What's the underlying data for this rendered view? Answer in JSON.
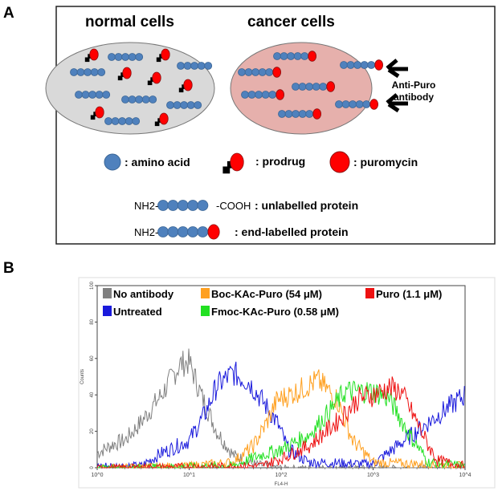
{
  "panel_a": {
    "label": "A",
    "normal_title": "normal cells",
    "cancer_title": "cancer cells",
    "antibody_label_1": "Anti-Puro",
    "antibody_label_2": "antibody",
    "legend": {
      "amino_acid": ": amino acid",
      "prodrug": ": prodrug",
      "puromycin": ": puromycin"
    },
    "unlabelled": {
      "nterm": "NH2-",
      "cterm": "-COOH",
      "label": ": unlabelled protein"
    },
    "endlabelled": {
      "nterm": "NH2-",
      "label": ": end-labelled protein"
    },
    "colors": {
      "amino_acid": "#4f81bd",
      "puromycin": "#ff0000",
      "normal_cell": "#d9d9d9",
      "cancer_cell": "#e6b0ac"
    }
  },
  "panel_b": {
    "label": "B"
  },
  "chart_data": {
    "type": "line",
    "xlabel": "FL4-H",
    "ylabel": "Counts",
    "x_scale": "log",
    "xlim": [
      1,
      10000
    ],
    "ylim": [
      0,
      100
    ],
    "x_ticks": [
      "10^0",
      "10^1",
      "10^2",
      "10^3",
      "10^4"
    ],
    "y_ticks": [
      "0",
      "20",
      "40",
      "60",
      "80",
      "100"
    ],
    "legend_position": "top",
    "series": [
      {
        "name": "No antibody",
        "color": "#808080",
        "x": [
          1,
          1.5,
          2,
          3,
          5,
          8,
          10,
          14,
          20,
          30,
          50,
          100,
          10000
        ],
        "y": [
          8,
          13,
          15,
          25,
          40,
          57,
          58,
          38,
          20,
          7,
          2,
          0,
          0
        ]
      },
      {
        "name": "Untreated",
        "color": "#1a1adc",
        "x": [
          1,
          3,
          5,
          10,
          15,
          20,
          30,
          45,
          60,
          90,
          120,
          200,
          1000,
          10000
        ],
        "y": [
          1,
          1,
          8,
          15,
          30,
          45,
          52,
          47,
          38,
          25,
          10,
          3,
          2,
          40
        ]
      },
      {
        "name": "Boc-KAc-Puro (54 μM)",
        "color": "#ffa020",
        "x": [
          1,
          10,
          30,
          50,
          70,
          90,
          150,
          250,
          400,
          600,
          1000,
          10000
        ],
        "y": [
          0,
          1,
          3,
          12,
          25,
          37,
          42,
          48,
          38,
          15,
          3,
          1
        ]
      },
      {
        "name": "Fmoc-KAc-Puro (0.58 μM)",
        "color": "#22e022",
        "x": [
          1,
          30,
          60,
          100,
          200,
          350,
          500,
          1000,
          1500,
          2500,
          4000,
          10000
        ],
        "y": [
          0,
          1,
          7,
          10,
          18,
          32,
          42,
          42,
          38,
          18,
          3,
          1
        ]
      },
      {
        "name": "Puro (1.1 μM)",
        "color": "#ee1111",
        "x": [
          1,
          60,
          100,
          200,
          400,
          700,
          1000,
          1500,
          2000,
          3000,
          4000,
          5000,
          10000
        ],
        "y": [
          0,
          1,
          5,
          12,
          25,
          38,
          40,
          44,
          42,
          25,
          12,
          4,
          1
        ]
      }
    ]
  }
}
